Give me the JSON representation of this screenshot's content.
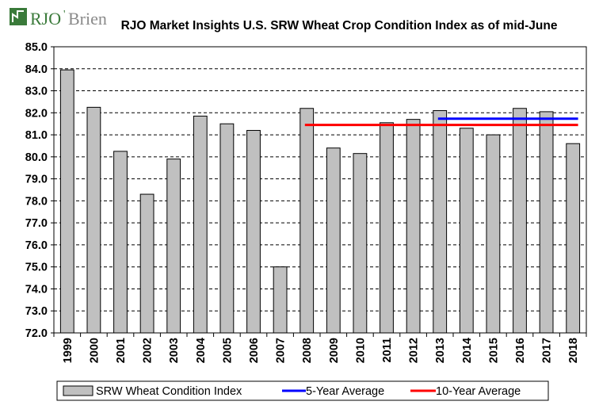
{
  "logo": {
    "text_main": "RJO",
    "text_apos": "'",
    "text_tail": "Brien"
  },
  "colors": {
    "bar_fill": "#c0c0c0",
    "bar_stroke": "#000000",
    "five_year": "#0000ff",
    "ten_year": "#ff0000",
    "logo_green": "#3a7a3a",
    "logo_gray": "#8a8a8a"
  },
  "chart_data": {
    "type": "bar",
    "title": "RJO Market Insights U.S. SRW Wheat Crop Condition Index as of mid-June",
    "categories": [
      "1999",
      "2000",
      "2001",
      "2002",
      "2003",
      "2004",
      "2005",
      "2006",
      "2007",
      "2008",
      "2009",
      "2010",
      "2011",
      "2012",
      "2013",
      "2014",
      "2015",
      "2016",
      "2017",
      "2018"
    ],
    "series": [
      {
        "name": "SRW Wheat Condition Index",
        "values": [
          83.95,
          82.25,
          80.25,
          78.3,
          79.9,
          81.85,
          81.5,
          81.2,
          75.0,
          82.2,
          80.4,
          80.15,
          81.55,
          81.7,
          82.1,
          81.3,
          81.0,
          82.2,
          82.05,
          80.6
        ]
      }
    ],
    "averages": [
      {
        "name": "5-Year Average",
        "value": 81.73,
        "from": "2013",
        "to": "2018"
      },
      {
        "name": "10-Year Average",
        "value": 81.45,
        "from": "2008",
        "to": "2018"
      }
    ],
    "ylim": [
      72.0,
      85.0
    ],
    "yticks": [
      "72.0",
      "73.0",
      "74.0",
      "75.0",
      "76.0",
      "77.0",
      "78.0",
      "79.0",
      "80.0",
      "81.0",
      "82.0",
      "83.0",
      "84.0",
      "85.0"
    ],
    "grid": true,
    "legend": [
      "SRW Wheat Condition Index",
      "5-Year Average",
      "10-Year Average"
    ],
    "legend_position": "bottom"
  }
}
